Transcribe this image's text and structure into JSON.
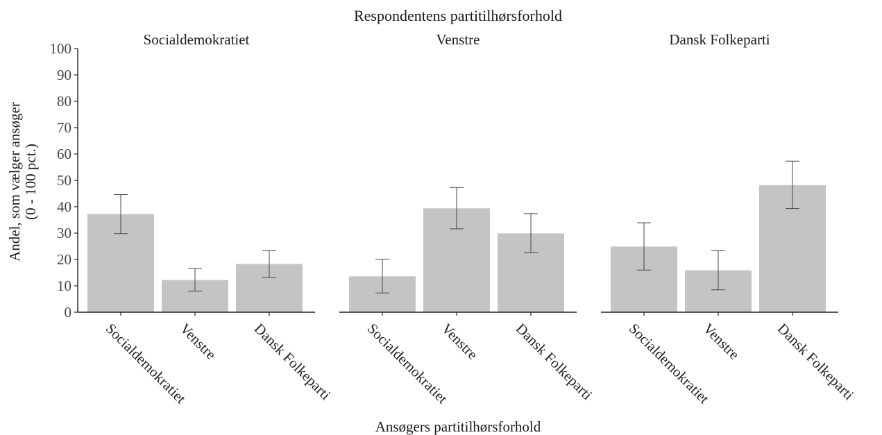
{
  "chart_data": {
    "type": "bar",
    "title": "Respondentens partitilhørsforhold",
    "xlabel": "Ansøgers partitilhørsforhold",
    "ylabel_line1": "Andel, som vælger ansøger",
    "ylabel_line2": "(0 - 100 pct.)",
    "ylim": [
      0,
      100
    ],
    "yticks": [
      0,
      10,
      20,
      30,
      40,
      50,
      60,
      70,
      80,
      90,
      100
    ],
    "categories": [
      "Socialdemokratiet",
      "Venstre",
      "Dansk Folkeparti"
    ],
    "panels": [
      {
        "name": "Socialdemokratiet",
        "values": [
          37.2,
          12.2,
          18.3
        ],
        "error_low": [
          29.8,
          8.0,
          13.3
        ],
        "error_high": [
          44.6,
          16.6,
          23.3
        ]
      },
      {
        "name": "Venstre",
        "values": [
          13.6,
          39.4,
          29.9
        ],
        "error_low": [
          7.3,
          31.6,
          22.6
        ],
        "error_high": [
          20.1,
          47.3,
          37.4
        ]
      },
      {
        "name": "Dansk Folkeparti",
        "values": [
          24.9,
          15.9,
          48.2
        ],
        "error_low": [
          16.0,
          8.5,
          39.3
        ],
        "error_high": [
          33.9,
          23.3,
          57.3
        ]
      }
    ],
    "bar_color": "#c4c4c4",
    "grid": false,
    "legend": "none"
  }
}
